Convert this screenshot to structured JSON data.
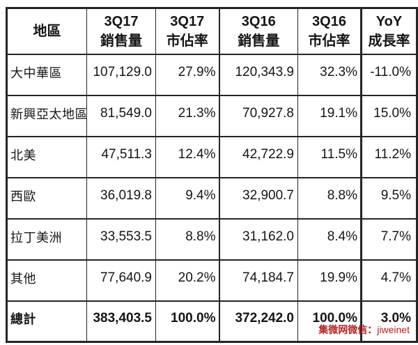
{
  "chart_data": {
    "type": "table",
    "title": "",
    "columns": [
      "地區",
      "3Q17 銷售量",
      "3Q17 市佔率",
      "3Q16 銷售量",
      "3Q16 市佔率",
      "YoY 成長率"
    ],
    "rows": [
      [
        "大中華區",
        107129.0,
        "27.9%",
        120343.9,
        "32.3%",
        "-11.0%"
      ],
      [
        "新興亞太地區",
        81549.0,
        "21.3%",
        70927.8,
        "19.1%",
        "15.0%"
      ],
      [
        "北美",
        47511.3,
        "12.4%",
        42722.9,
        "11.5%",
        "11.2%"
      ],
      [
        "西歐",
        36019.8,
        "9.4%",
        32900.7,
        "8.8%",
        "9.5%"
      ],
      [
        "拉丁美洲",
        33553.5,
        "8.8%",
        31162.0,
        "8.4%",
        "7.7%"
      ],
      [
        "其他",
        77640.9,
        "20.2%",
        74184.7,
        "19.9%",
        "4.7%"
      ],
      [
        "總計",
        383403.5,
        "100.0%",
        372242.0,
        "100.0%",
        "3.0%"
      ]
    ]
  },
  "table": {
    "headers": [
      {
        "line1": "地區",
        "line2": ""
      },
      {
        "line1": "3Q17",
        "line2": "銷售量"
      },
      {
        "line1": "3Q17",
        "line2": "市佔率"
      },
      {
        "line1": "3Q16",
        "line2": "銷售量"
      },
      {
        "line1": "3Q16",
        "line2": "市佔率"
      },
      {
        "line1": "YoY",
        "line2": "成長率"
      }
    ],
    "rows": [
      {
        "region": "大中華區",
        "q17_volume": "107,129.0",
        "q17_share": "27.9%",
        "q16_volume": "120,343.9",
        "q16_share": "32.3%",
        "yoy": "-11.0%"
      },
      {
        "region": "新興亞太地區",
        "q17_volume": "81,549.0",
        "q17_share": "21.3%",
        "q16_volume": "70,927.8",
        "q16_share": "19.1%",
        "yoy": "15.0%"
      },
      {
        "region": "北美",
        "q17_volume": "47,511.3",
        "q17_share": "12.4%",
        "q16_volume": "42,722.9",
        "q16_share": "11.5%",
        "yoy": "11.2%"
      },
      {
        "region": "西歐",
        "q17_volume": "36,019.8",
        "q17_share": "9.4%",
        "q16_volume": "32,900.7",
        "q16_share": "8.8%",
        "yoy": "9.5%"
      },
      {
        "region": "拉丁美洲",
        "q17_volume": "33,553.5",
        "q17_share": "8.8%",
        "q16_volume": "31,162.0",
        "q16_share": "8.4%",
        "yoy": "7.7%"
      },
      {
        "region": "其他",
        "q17_volume": "77,640.9",
        "q17_share": "20.2%",
        "q16_volume": "74,184.7",
        "q16_share": "19.9%",
        "yoy": "4.7%"
      }
    ],
    "total": {
      "region": "總計",
      "q17_volume": "383,403.5",
      "q17_share": "100.0%",
      "q16_volume": "372,242.0",
      "q16_share": "100.0%",
      "yoy": "3.0%"
    }
  },
  "footer": {
    "wechat_label": "集微网微信：",
    "wechat_value": "jiweinet",
    "color": "#b22222"
  }
}
